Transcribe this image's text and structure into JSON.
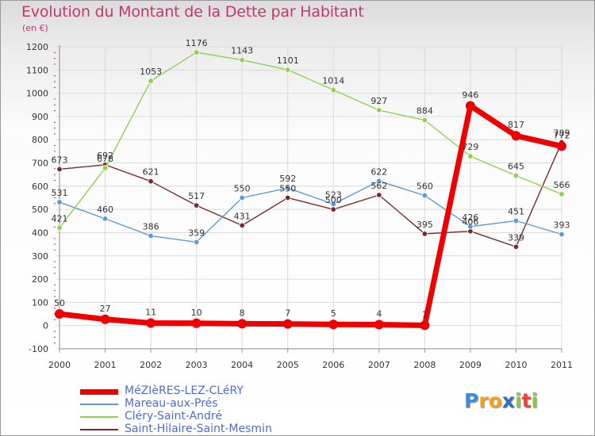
{
  "header": {
    "title": "Evolution du Montant de la Dette par Habitant",
    "subtitle": "(en €)"
  },
  "branding": {
    "letters": [
      "P",
      "r",
      "o",
      "x",
      "i",
      "t",
      "i"
    ],
    "colors": [
      "#3b8fd8",
      "#f3a21c",
      "#f3a21c",
      "#2f6fb8",
      "#8cc63e",
      "#e8463c",
      "#8cc63e"
    ]
  },
  "chart_data": {
    "type": "line",
    "title": "Evolution du Montant de la Dette par Habitant",
    "ylabel": "(en €)",
    "xlabel": "",
    "x": [
      "2000",
      "2001",
      "2002",
      "2003",
      "2004",
      "2005",
      "2006",
      "2007",
      "2008",
      "2009",
      "2010",
      "2011"
    ],
    "ylim": [
      -100,
      1200
    ],
    "yticks": [
      -100,
      0,
      100,
      200,
      300,
      400,
      500,
      600,
      700,
      800,
      900,
      1000,
      1100,
      1200
    ],
    "grid": true,
    "series": [
      {
        "name": "Saint-Hilaire-Saint-Mesmin",
        "color": "#7a2a2a",
        "values": [
          673,
          692,
          621,
          517,
          431,
          550,
          500,
          562,
          395,
          406,
          339,
          789
        ],
        "labels": [
          "673",
          "692",
          "621",
          "517",
          "431",
          "550",
          "500",
          "562",
          "395",
          "406",
          "339",
          "789"
        ]
      },
      {
        "name": "Mareau-aux-Prés",
        "color": "#5b9bd5",
        "values": [
          531,
          460,
          386,
          359,
          550,
          592,
          523,
          622,
          560,
          426,
          451,
          393
        ],
        "labels": [
          "531",
          "460",
          "386",
          "359",
          "550",
          "592",
          "523",
          "622",
          "560",
          "426",
          "451",
          "393"
        ]
      },
      {
        "name": "Cléry-Saint-André",
        "color": "#8fd14f",
        "values": [
          421,
          678,
          1053,
          1176,
          1143,
          1101,
          1014,
          927,
          884,
          729,
          645,
          566
        ],
        "labels": [
          "421",
          "678",
          "1053",
          "1176",
          "1143",
          "1101",
          "1014",
          "927",
          "884",
          "729",
          "645",
          "566"
        ]
      },
      {
        "name": "MéZIèRES-LEZ-CLéRY",
        "color": "#ee0000",
        "values": [
          50,
          27,
          11,
          10,
          8,
          7,
          5,
          4,
          1,
          946,
          817,
          772
        ],
        "labels": [
          "50",
          "27",
          "11",
          "10",
          "8",
          "7",
          "5",
          "4",
          "1",
          "946",
          "817",
          "772"
        ]
      }
    ],
    "legend": {
      "position": "bottom-left",
      "entries": [
        {
          "name": "MéZIèRES-LEZ-CLéRY",
          "color": "#ee0000"
        },
        {
          "name": "Mareau-aux-Prés",
          "color": "#5b9bd5"
        },
        {
          "name": "Cléry-Saint-André",
          "color": "#8fd14f"
        },
        {
          "name": "Saint-Hilaire-Saint-Mesmin",
          "color": "#7a2a2a"
        }
      ]
    }
  }
}
